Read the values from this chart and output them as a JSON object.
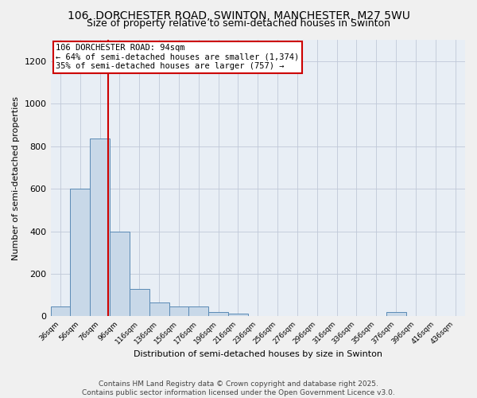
{
  "title_line1": "106, DORCHESTER ROAD, SWINTON, MANCHESTER, M27 5WU",
  "title_line2": "Size of property relative to semi-detached houses in Swinton",
  "xlabel": "Distribution of semi-detached houses by size in Swinton",
  "ylabel": "Number of semi-detached properties",
  "bin_labels": [
    "36sqm",
    "56sqm",
    "76sqm",
    "96sqm",
    "116sqm",
    "136sqm",
    "156sqm",
    "176sqm",
    "196sqm",
    "216sqm",
    "236sqm",
    "256sqm",
    "276sqm",
    "296sqm",
    "316sqm",
    "336sqm",
    "356sqm",
    "376sqm",
    "396sqm",
    "416sqm",
    "436sqm"
  ],
  "bin_edges": [
    36,
    56,
    76,
    96,
    116,
    136,
    156,
    176,
    196,
    216,
    236,
    256,
    276,
    296,
    316,
    336,
    356,
    376,
    396,
    416,
    436
  ],
  "bar_heights": [
    46,
    600,
    835,
    400,
    130,
    65,
    47,
    47,
    22,
    12,
    0,
    0,
    0,
    0,
    0,
    0,
    0,
    22,
    0,
    0
  ],
  "bar_color": "#c8d8e8",
  "bar_edge_color": "#5a8ab5",
  "property_size": 94,
  "vline_color": "#cc0000",
  "annotation_text": "106 DORCHESTER ROAD: 94sqm\n← 64% of semi-detached houses are smaller (1,374)\n35% of semi-detached houses are larger (757) →",
  "annotation_box_color": "#cc0000",
  "ylim": [
    0,
    1300
  ],
  "yticks": [
    0,
    200,
    400,
    600,
    800,
    1000,
    1200
  ],
  "grid_color": "#c0c8d8",
  "background_color": "#e8eef5",
  "fig_background_color": "#f0f0f0",
  "footer_text": "Contains HM Land Registry data © Crown copyright and database right 2025.\nContains public sector information licensed under the Open Government Licence v3.0.",
  "title_fontsize": 10,
  "subtitle_fontsize": 9,
  "annotation_fontsize": 7.5,
  "footer_fontsize": 6.5,
  "xlabel_fontsize": 8,
  "ylabel_fontsize": 8
}
